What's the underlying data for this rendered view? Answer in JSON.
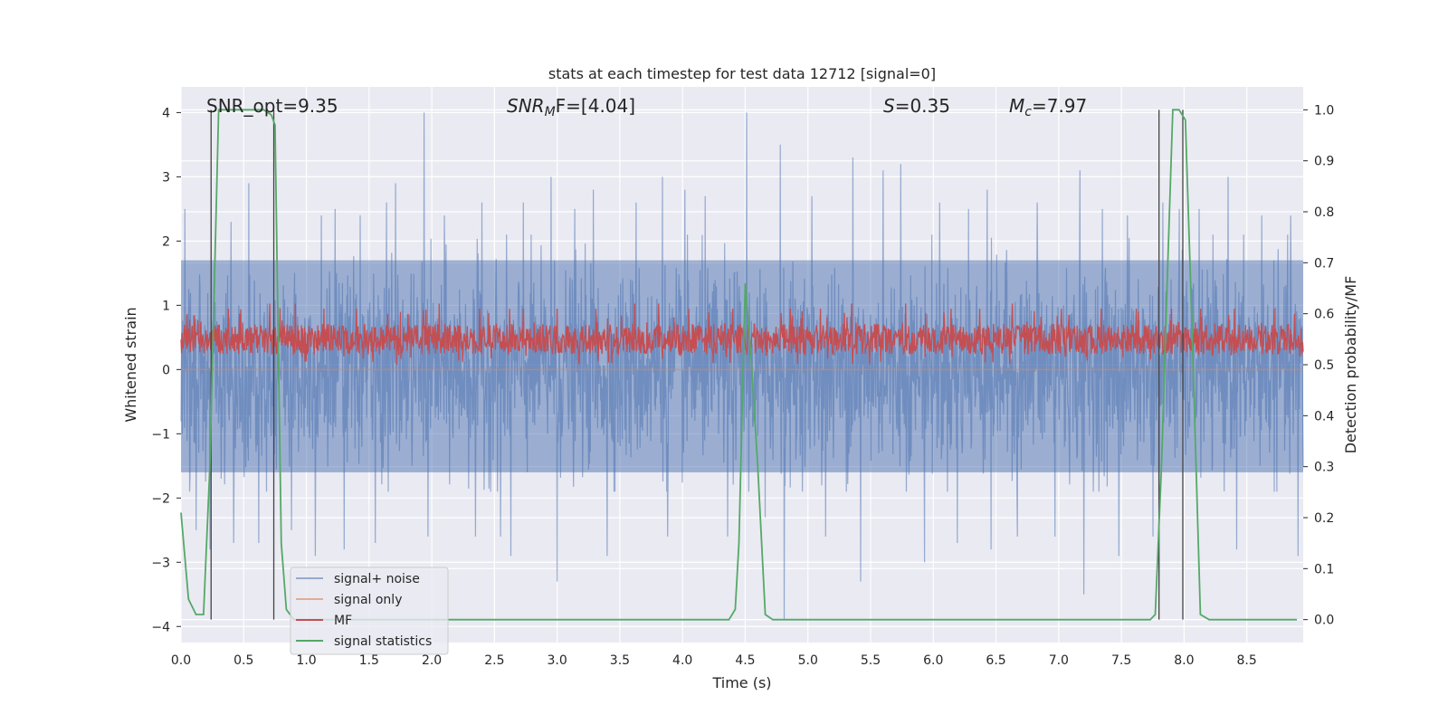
{
  "chart_data": {
    "type": "line",
    "title": "stats at each timestep for test data 12712 [signal=0]",
    "xlabel": "Time (s)",
    "ylabel": "Whitened strain",
    "y2label": "Detection probability/MF",
    "xlim": [
      0.0,
      8.95
    ],
    "ylim": [
      -4.25,
      4.4
    ],
    "y2lim": [
      -0.045,
      1.045
    ],
    "xticks": [
      "0.0",
      "0.5",
      "1.0",
      "1.5",
      "2.0",
      "2.5",
      "3.0",
      "3.5",
      "4.0",
      "4.5",
      "5.0",
      "5.5",
      "6.0",
      "6.5",
      "7.0",
      "7.5",
      "8.0",
      "8.5"
    ],
    "xtick_values": [
      0,
      0.5,
      1,
      1.5,
      2,
      2.5,
      3,
      3.5,
      4,
      4.5,
      5,
      5.5,
      6,
      6.5,
      7,
      7.5,
      8,
      8.5
    ],
    "yticks": [
      "−4",
      "−3",
      "−2",
      "−1",
      "0",
      "1",
      "2",
      "3",
      "4"
    ],
    "ytick_values": [
      -4,
      -3,
      -2,
      -1,
      0,
      1,
      2,
      3,
      4
    ],
    "y2ticks": [
      "0.0",
      "0.1",
      "0.2",
      "0.3",
      "0.4",
      "0.5",
      "0.6",
      "0.7",
      "0.8",
      "0.9",
      "1.0"
    ],
    "y2tick_values": [
      0,
      0.1,
      0.2,
      0.3,
      0.4,
      0.5,
      0.6,
      0.7,
      0.8,
      0.9,
      1.0
    ],
    "grid": true,
    "legend_position": "lower-left",
    "annotations": {
      "snr_opt": "SNR_opt=9.35",
      "snr_mf_main": "SNR",
      "snr_mf_sub": "M",
      "snr_mf_rest": "F=[4.04]",
      "s_main": "S",
      "s_rest": "=0.35",
      "mc_main": "M",
      "mc_sub": "c",
      "mc_rest": "=7.97"
    },
    "noise_envelope": {
      "description_x_range": [
        0.0,
        8.95
      ],
      "typical_range": [
        -1.6,
        1.7
      ]
    },
    "mf_band": {
      "typical_range": [
        0.52,
        0.58
      ],
      "axis": "right"
    },
    "series": [
      {
        "name": "signal+ noise",
        "color": "#4c72b0",
        "style": "noise",
        "peaks_y": [
          [
            0.03,
            2.5
          ],
          [
            0.12,
            -2.5
          ],
          [
            0.23,
            -2.8
          ],
          [
            0.4,
            2.3
          ],
          [
            0.42,
            -2.7
          ],
          [
            0.54,
            2.9
          ],
          [
            0.62,
            -2.7
          ],
          [
            0.88,
            -2.5
          ],
          [
            1.07,
            -2.9
          ],
          [
            1.12,
            2.4
          ],
          [
            1.23,
            2.5
          ],
          [
            1.3,
            -2.8
          ],
          [
            1.43,
            2.4
          ],
          [
            1.55,
            -2.7
          ],
          [
            1.64,
            2.6
          ],
          [
            1.71,
            2.9
          ],
          [
            1.94,
            4.0
          ],
          [
            1.97,
            -2.6
          ],
          [
            2.1,
            2.4
          ],
          [
            2.35,
            -2.6
          ],
          [
            2.4,
            2.6
          ],
          [
            2.55,
            -2.6
          ],
          [
            2.63,
            -2.9
          ],
          [
            2.73,
            2.6
          ],
          [
            2.95,
            3.0
          ],
          [
            3.0,
            -3.3
          ],
          [
            3.14,
            2.5
          ],
          [
            3.29,
            2.8
          ],
          [
            3.4,
            -2.9
          ],
          [
            3.63,
            2.6
          ],
          [
            3.84,
            3.0
          ],
          [
            3.88,
            -2.6
          ],
          [
            4.02,
            2.8
          ],
          [
            4.18,
            2.7
          ],
          [
            4.36,
            -2.6
          ],
          [
            4.51,
            4.0
          ],
          [
            4.66,
            -2.3
          ],
          [
            4.78,
            3.5
          ],
          [
            4.81,
            -3.9
          ],
          [
            5.03,
            2.7
          ],
          [
            5.14,
            -2.6
          ],
          [
            5.36,
            3.3
          ],
          [
            5.42,
            -3.3
          ],
          [
            5.6,
            3.1
          ],
          [
            5.74,
            3.2
          ],
          [
            5.93,
            -3.0
          ],
          [
            6.05,
            2.6
          ],
          [
            6.19,
            -2.7
          ],
          [
            6.28,
            2.5
          ],
          [
            6.43,
            2.8
          ],
          [
            6.46,
            -2.8
          ],
          [
            6.67,
            -2.6
          ],
          [
            6.83,
            2.6
          ],
          [
            6.97,
            -2.6
          ],
          [
            7.17,
            3.1
          ],
          [
            7.2,
            -3.5
          ],
          [
            7.35,
            2.5
          ],
          [
            7.48,
            -2.9
          ],
          [
            7.55,
            2.4
          ],
          [
            7.75,
            -2.6
          ],
          [
            7.8,
            -3.4
          ],
          [
            7.83,
            2.6
          ],
          [
            7.96,
            2.5
          ],
          [
            8.12,
            2.5
          ],
          [
            8.35,
            3.0
          ],
          [
            8.42,
            -2.8
          ],
          [
            8.62,
            2.4
          ],
          [
            8.85,
            2.4
          ],
          [
            8.91,
            -2.9
          ]
        ]
      },
      {
        "name": "signal only",
        "color": "#dd8452",
        "x": [
          0.0,
          8.95
        ],
        "y": [
          0.0,
          0.0
        ]
      },
      {
        "name": "MF",
        "color": "#c44e52",
        "axis": "right",
        "peaks_y2": [
          [
            0.05,
            0.6
          ],
          [
            0.38,
            0.61
          ],
          [
            0.47,
            0.6
          ],
          [
            0.71,
            0.62
          ],
          [
            0.91,
            0.62
          ],
          [
            1.14,
            0.61
          ],
          [
            1.4,
            0.61
          ],
          [
            1.65,
            0.6
          ],
          [
            1.81,
            0.6
          ],
          [
            2.06,
            0.62
          ],
          [
            2.38,
            0.61
          ],
          [
            2.73,
            0.61
          ],
          [
            3.0,
            0.61
          ],
          [
            3.31,
            0.61
          ],
          [
            3.62,
            0.62
          ],
          [
            3.81,
            0.62
          ],
          [
            4.05,
            0.61
          ],
          [
            4.4,
            0.61
          ],
          [
            4.86,
            0.61
          ],
          [
            5.1,
            0.61
          ],
          [
            5.35,
            0.62
          ],
          [
            5.78,
            0.62
          ],
          [
            6.14,
            0.61
          ],
          [
            6.37,
            0.61
          ],
          [
            6.63,
            0.62
          ],
          [
            7.02,
            0.61
          ],
          [
            7.34,
            0.61
          ],
          [
            7.62,
            0.61
          ],
          [
            7.9,
            0.61
          ],
          [
            8.13,
            0.61
          ],
          [
            8.4,
            0.61
          ],
          [
            8.72,
            0.61
          ],
          [
            8.88,
            0.6
          ]
        ]
      },
      {
        "name": "signal statistics",
        "color": "#55a868",
        "axis": "right",
        "x": [
          0.0,
          0.06,
          0.12,
          0.18,
          0.23,
          0.3,
          0.36,
          0.42,
          0.48,
          0.54,
          0.6,
          0.66,
          0.72,
          0.75,
          0.8,
          0.84,
          0.9,
          1.0,
          4.2,
          4.37,
          4.42,
          4.45,
          4.5,
          4.55,
          4.6,
          4.66,
          4.72,
          4.8,
          7.5,
          7.73,
          7.77,
          7.82,
          7.87,
          7.91,
          7.96,
          8.01,
          8.06,
          8.13,
          8.2,
          8.9
        ],
        "y": [
          0.21,
          0.04,
          0.01,
          0.01,
          0.3,
          1.0,
          1.0,
          1.0,
          1.0,
          1.0,
          1.0,
          1.0,
          0.99,
          0.97,
          0.15,
          0.02,
          0.0,
          0.0,
          0.0,
          0.0,
          0.02,
          0.15,
          0.66,
          0.5,
          0.3,
          0.01,
          0.0,
          0.0,
          0.0,
          0.0,
          0.01,
          0.3,
          0.7,
          1.0,
          1.0,
          0.98,
          0.6,
          0.01,
          0.0,
          0.0
        ]
      }
    ],
    "vertical_markers_x": [
      0.24,
      0.74,
      7.8,
      7.99
    ]
  }
}
